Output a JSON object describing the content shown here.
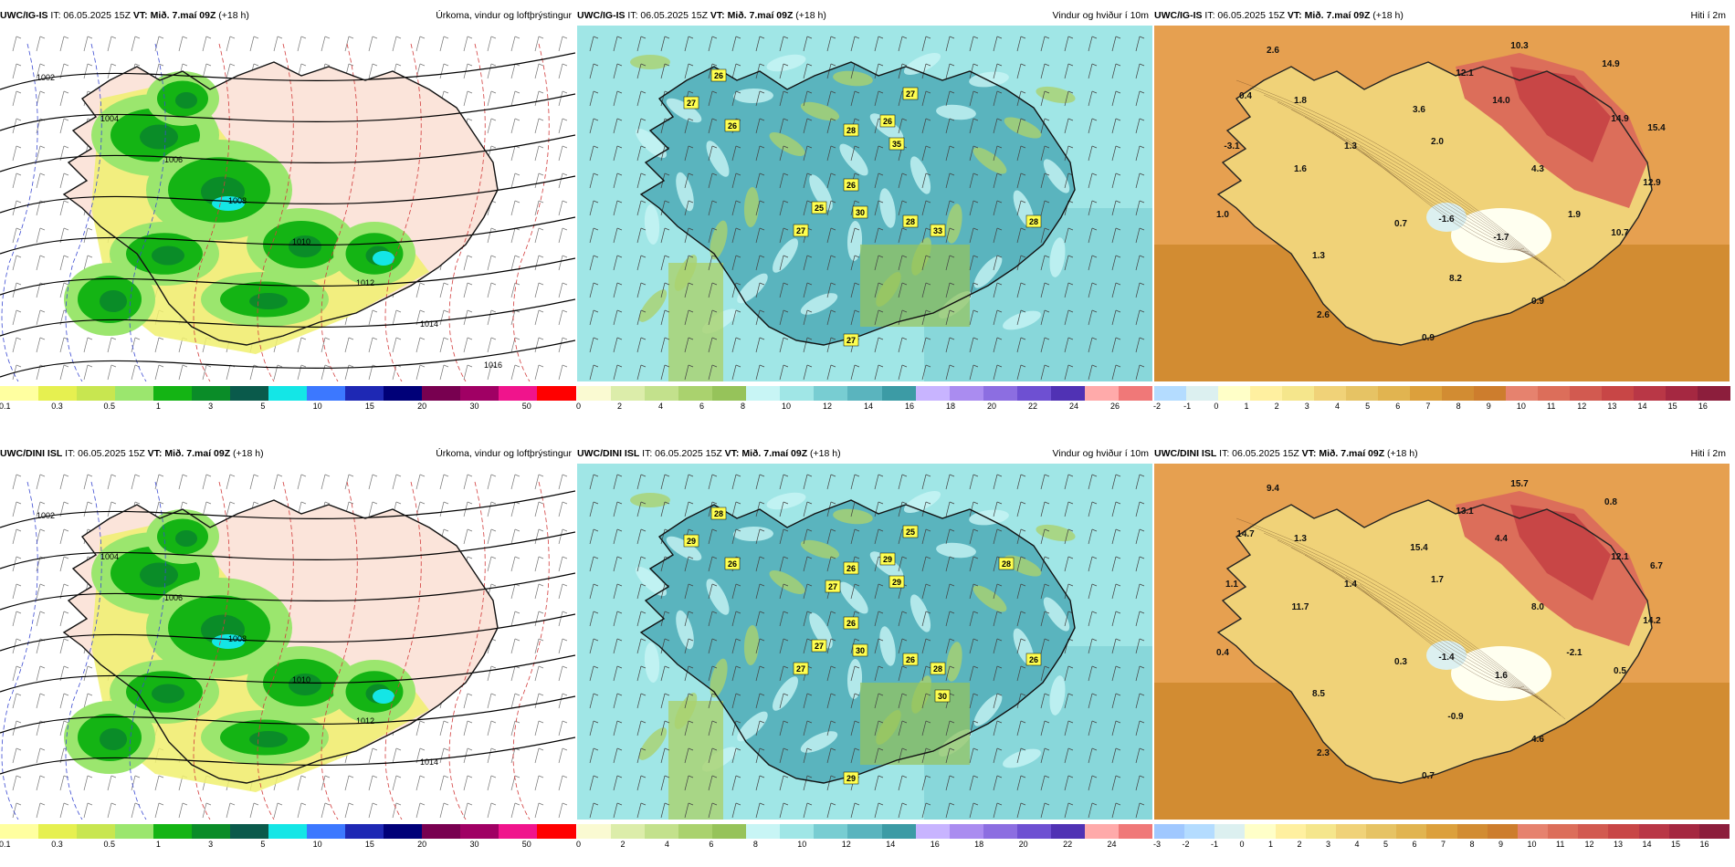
{
  "panels": [
    {
      "row": 0,
      "col": 0,
      "model": "UWC/IG-IS",
      "it": "IT: 06.05.2025 15Z",
      "vt_label": "VT:",
      "vt": "Mið. 7.maí 09Z",
      "lead": "(+18 h)",
      "title": "Úrkoma, vindur og loftþrýstingur",
      "type": "precip",
      "colorbar": {
        "colors": [
          "#ffffa0",
          "#e6f050",
          "#c8e650",
          "#9be66e",
          "#14b414",
          "#0a8c28",
          "#0a5a4b",
          "#14e6e6",
          "#3c78ff",
          "#1e28b4",
          "#000078",
          "#780050",
          "#a00064",
          "#f0148c",
          "#ff0000"
        ],
        "ticks": [
          "0.1",
          "0.3",
          "0.5",
          "1",
          "3",
          "5",
          "10",
          "15",
          "20",
          "30",
          "50"
        ],
        "tick_pos": [
          0,
          1,
          2,
          3,
          4,
          5,
          6,
          7,
          8,
          9,
          10
        ]
      },
      "isobars": [
        "1002",
        "1004",
        "1006",
        "1008",
        "1010",
        "1012",
        "1014",
        "1016"
      ]
    },
    {
      "row": 0,
      "col": 1,
      "model": "UWC/IG-IS",
      "it": "IT: 06.05.2025 15Z",
      "vt_label": "VT:",
      "vt": "Mið. 7.maí 09Z",
      "lead": "(+18 h)",
      "title": "Vindur og hviður í 10m",
      "type": "wind",
      "colorbar": {
        "colors": [
          "#fafad2",
          "#dcedaa",
          "#c3e18c",
          "#aad26e",
          "#96c35a",
          "#c8f5f5",
          "#a0e6e6",
          "#78cdd2",
          "#5ab4be",
          "#3c9ba5",
          "#c8b4ff",
          "#aa8cf0",
          "#8c6ee1",
          "#6e50d2",
          "#5032b4",
          "#ffaaaa",
          "#f07878"
        ],
        "ticks": [
          "0",
          "2",
          "4",
          "6",
          "8",
          "10",
          "12",
          "14",
          "16",
          "18",
          "20",
          "22",
          "24",
          "26"
        ]
      },
      "gust_labels": [
        "26",
        "27",
        "26",
        "28",
        "26",
        "27",
        "35",
        "26",
        "25",
        "30",
        "27",
        "28",
        "33",
        "28",
        "27"
      ]
    },
    {
      "row": 0,
      "col": 2,
      "model": "UWC/IG-IS",
      "it": "IT: 06.05.2025 15Z",
      "vt_label": "VT:",
      "vt": "Mið. 7.maí 09Z",
      "lead": "(+18 h)",
      "title": "Hiti í 2m",
      "type": "temp",
      "colorbar": {
        "colors": [
          "#b4dcff",
          "#dcf0f0",
          "#ffffc8",
          "#fff0a0",
          "#f5e68c",
          "#f0d278",
          "#e6c364",
          "#e1b450",
          "#dca03c",
          "#d28c32",
          "#cd7d2d",
          "#e6826e",
          "#dc6e5a",
          "#d25a50",
          "#c84646",
          "#b93746",
          "#a52841",
          "#8c1e3c"
        ],
        "ticks": [
          "-2",
          "-1",
          "0",
          "1",
          "2",
          "3",
          "4",
          "5",
          "6",
          "7",
          "8",
          "9",
          "10",
          "11",
          "12",
          "13",
          "14",
          "15",
          "16"
        ]
      },
      "temp_labels": [
        "2.6",
        "10.3",
        "14.9",
        "0.4",
        "1.8",
        "12.1",
        "14.0",
        "3.6",
        "14.9",
        "15.4",
        "-3.1",
        "1.3",
        "2.0",
        "1.6",
        "4.3",
        "12.9",
        "1.0",
        "0.7",
        "-1.6",
        "1.9",
        "10.7",
        "-1.7",
        "1.3",
        "8.2",
        "2.6",
        "0.9",
        "0.9"
      ]
    },
    {
      "row": 1,
      "col": 0,
      "model": "UWC/DINI ISL",
      "it": "IT: 06.05.2025 15Z",
      "vt_label": "VT:",
      "vt": "Mið. 7.maí 09Z",
      "lead": "(+18 h)",
      "title": "Úrkoma, vindur og loftþrýstingur",
      "type": "precip",
      "colorbar": {
        "colors": [
          "#ffffa0",
          "#e6f050",
          "#c8e650",
          "#9be66e",
          "#14b414",
          "#0a8c28",
          "#0a5a4b",
          "#14e6e6",
          "#3c78ff",
          "#1e28b4",
          "#000078",
          "#780050",
          "#a00064",
          "#f0148c",
          "#ff0000"
        ],
        "ticks": [
          "0.1",
          "0.3",
          "0.5",
          "1",
          "3",
          "5",
          "10",
          "15",
          "20",
          "30",
          "50"
        ]
      },
      "isobars": [
        "1002",
        "1004",
        "1006",
        "1008",
        "1010",
        "1012",
        "1014"
      ]
    },
    {
      "row": 1,
      "col": 1,
      "model": "UWC/DINI ISL",
      "it": "IT: 06.05.2025 15Z",
      "vt_label": "VT:",
      "vt": "Mið. 7.maí 09Z",
      "lead": "(+18 h)",
      "title": "Vindur og hviður í 10m",
      "type": "wind",
      "colorbar": {
        "colors": [
          "#fafad2",
          "#dcedaa",
          "#c3e18c",
          "#aad26e",
          "#96c35a",
          "#c8f5f5",
          "#a0e6e6",
          "#78cdd2",
          "#5ab4be",
          "#3c9ba5",
          "#c8b4ff",
          "#aa8cf0",
          "#8c6ee1",
          "#6e50d2",
          "#5032b4",
          "#ffaaaa",
          "#f07878"
        ],
        "ticks": [
          "0",
          "2",
          "4",
          "6",
          "8",
          "10",
          "12",
          "14",
          "16",
          "18",
          "20",
          "22",
          "24"
        ]
      },
      "gust_labels": [
        "28",
        "29",
        "26",
        "26",
        "29",
        "25",
        "29",
        "26",
        "27",
        "30",
        "27",
        "26",
        "28",
        "26",
        "29",
        "28",
        "30",
        "27"
      ]
    },
    {
      "row": 1,
      "col": 2,
      "model": "UWC/DINI ISL",
      "it": "IT: 06.05.2025 15Z",
      "vt_label": "VT:",
      "vt": "Mið. 7.maí 09Z",
      "lead": "(+18 h)",
      "title": "Hiti í 2m",
      "type": "temp",
      "colorbar": {
        "colors": [
          "#a0c8ff",
          "#b4dcff",
          "#dcf0f0",
          "#ffffc8",
          "#fff0a0",
          "#f5e68c",
          "#f0d278",
          "#e6c364",
          "#e1b450",
          "#dca03c",
          "#d28c32",
          "#cd7d2d",
          "#e6826e",
          "#dc6e5a",
          "#d25a50",
          "#c84646",
          "#b93746",
          "#a52841",
          "#8c1e3c"
        ],
        "ticks": [
          "-3",
          "-2",
          "-1",
          "0",
          "1",
          "2",
          "3",
          "4",
          "5",
          "6",
          "7",
          "8",
          "9",
          "10",
          "11",
          "12",
          "13",
          "14",
          "15",
          "16"
        ]
      },
      "temp_labels": [
        "9.4",
        "15.7",
        "0.8",
        "14.7",
        "1.3",
        "13.1",
        "4.4",
        "15.4",
        "12.1",
        "6.7",
        "1.1",
        "1.4",
        "1.7",
        "11.7",
        "8.0",
        "14.2",
        "0.4",
        "0.3",
        "-1.4",
        "-2.1",
        "0.5",
        "1.6",
        "8.5",
        "-0.9",
        "2.3",
        "4.6",
        "0.7"
      ]
    }
  ]
}
